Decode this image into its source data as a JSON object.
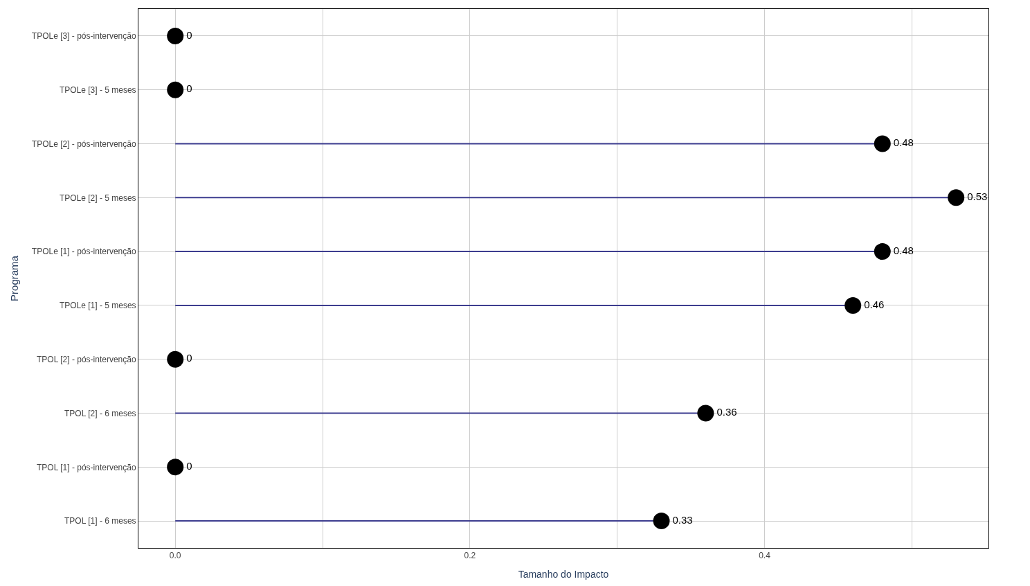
{
  "chart_data": {
    "type": "lollipop",
    "orientation": "horizontal",
    "xlabel": "Tamanho do Impacto",
    "ylabel": "Programa",
    "categories": [
      "TPOLe [3] - pós-intervenção",
      "TPOLe [3] - 5 meses",
      "TPOLe [2] - pós-intervenção",
      "TPOLe [2] - 5 meses",
      "TPOLe [1] - pós-intervenção",
      "TPOLe [1] - 5 meses",
      "TPOL [2] - pós-intervenção",
      "TPOL [2] - 6 meses",
      "TPOL [1] - pós-intervenção",
      "TPOL [1] - 6 meses"
    ],
    "series": [
      {
        "color": "#000000",
        "values": [
          0,
          0,
          0.48,
          0.53,
          0.48,
          0.46,
          0,
          0.36,
          0,
          0.33
        ]
      }
    ],
    "data_labels": true,
    "xlim": [
      -0.025,
      0.552
    ],
    "xticks": [
      {
        "value": 0.0,
        "label": "0.0"
      },
      {
        "value": 0.1,
        "label": null
      },
      {
        "value": 0.2,
        "label": "0.2"
      },
      {
        "value": 0.3,
        "label": null
      },
      {
        "value": 0.4,
        "label": "0.4"
      },
      {
        "value": 0.5,
        "label": null
      }
    ],
    "grid": true,
    "marker": "circle"
  }
}
